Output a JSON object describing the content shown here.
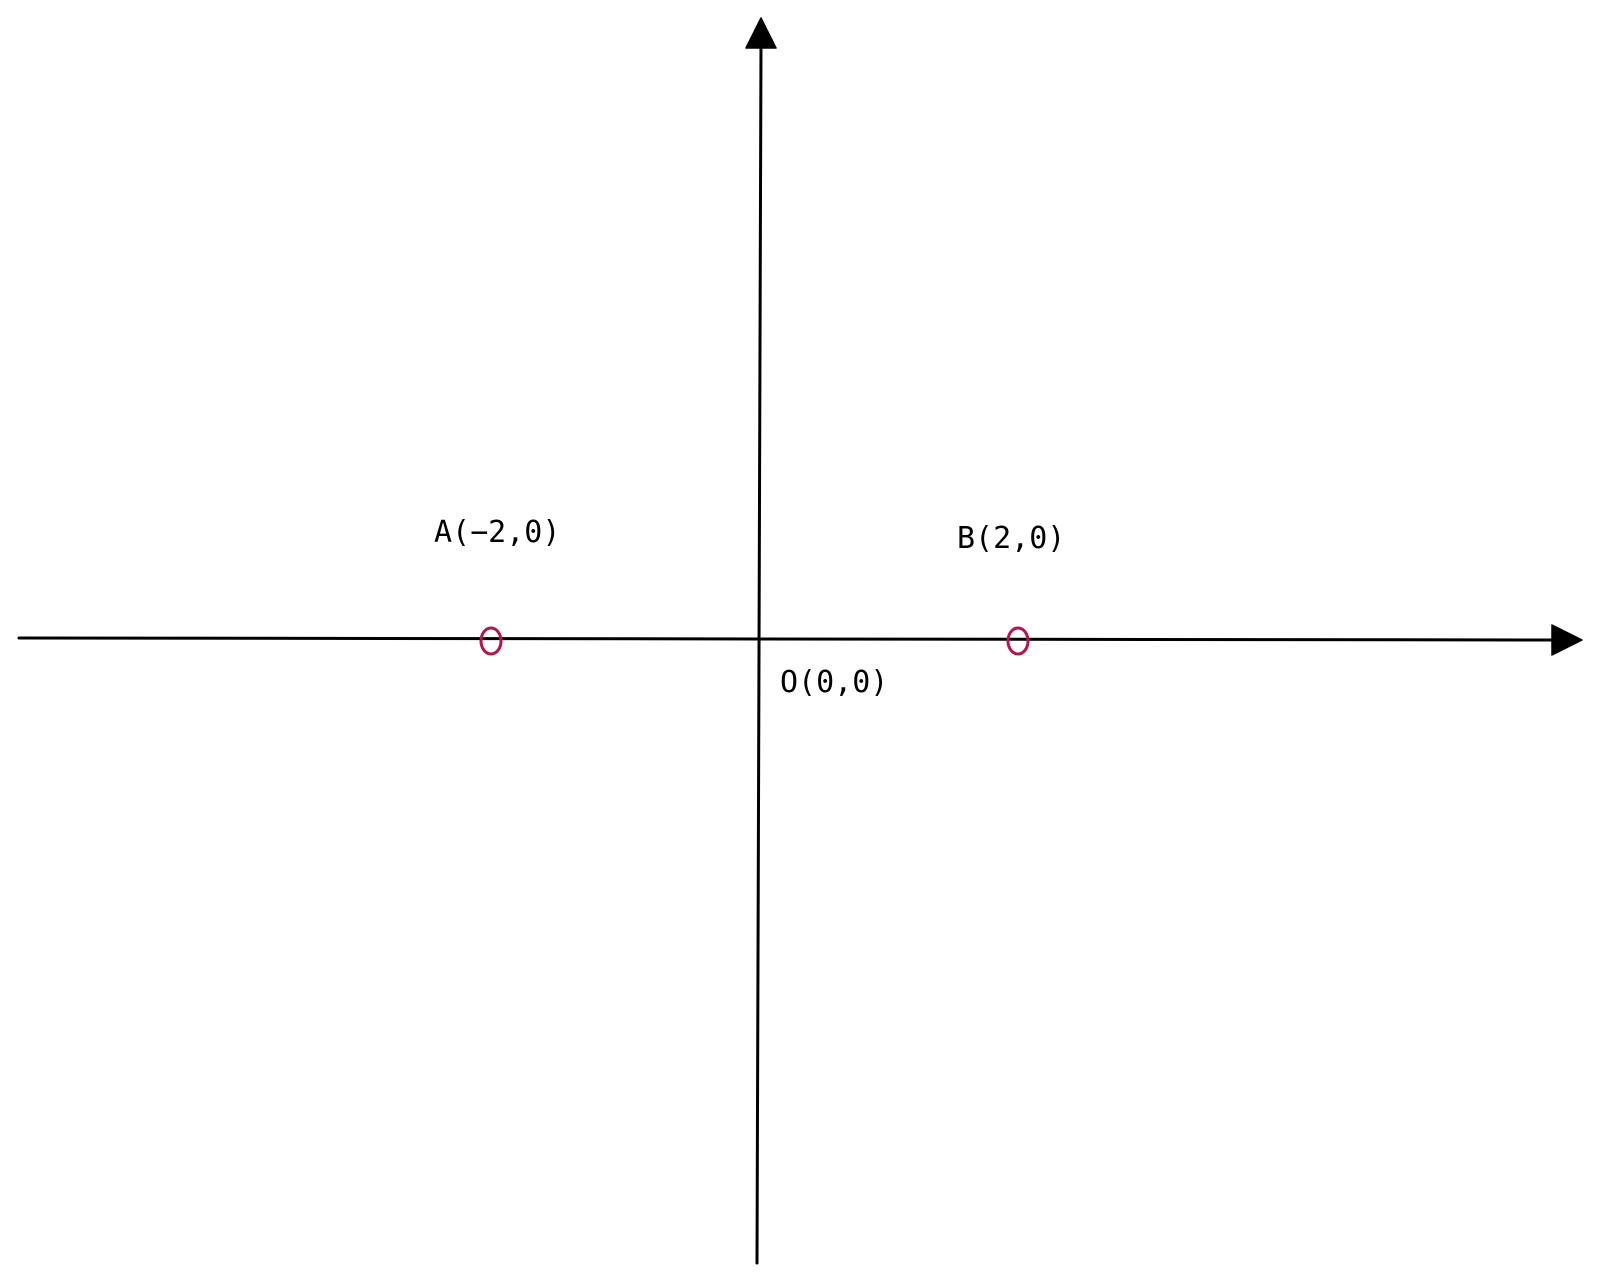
{
  "colors": {
    "axes": "#000000",
    "point_marker": "#b0164f",
    "background": "#ffffff"
  },
  "points": [
    {
      "id": "A",
      "label": "A(−2,0)",
      "x": -2,
      "y": 0
    },
    {
      "id": "B",
      "label": "B(2,0)",
      "x": 2,
      "y": 0
    }
  ],
  "origin": {
    "label": "O(0,0)",
    "x": 0,
    "y": 0
  }
}
